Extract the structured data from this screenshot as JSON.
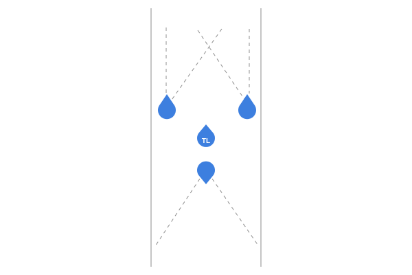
{
  "canvas": {
    "background_color": "#ffffff"
  },
  "markers": [
    {
      "name": "top-left-marker",
      "label": "",
      "shape": "teardrop-up"
    },
    {
      "name": "top-right-marker",
      "label": "",
      "shape": "teardrop-up"
    },
    {
      "name": "center-marker",
      "label": "TL",
      "shape": "teardrop-up"
    },
    {
      "name": "bottom-marker",
      "label": "",
      "shape": "teardrop-down"
    }
  ],
  "style": {
    "marker_color": "#3d7fdf",
    "line_color": "#9e9e9e",
    "dash_color": "#8f8f8f"
  }
}
